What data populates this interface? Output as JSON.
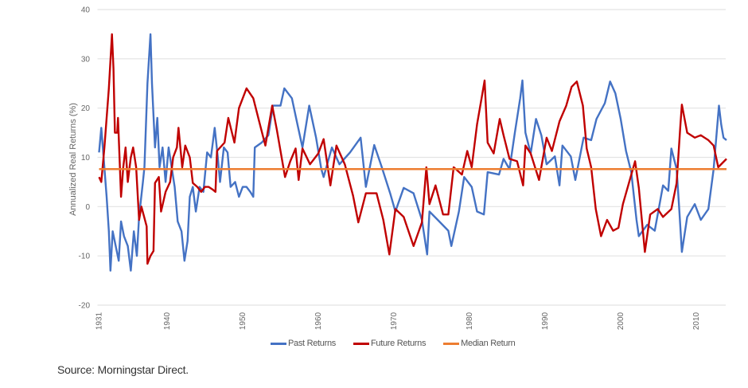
{
  "chart_data": {
    "type": "line",
    "title": "",
    "xlabel": "",
    "ylabel": "Annualized Real Returns (%)",
    "ylim": [
      -20,
      40
    ],
    "xlim": [
      1931,
      2014
    ],
    "yticks": [
      40,
      30,
      20,
      10,
      0,
      -10,
      -20
    ],
    "xticks": [
      "1931",
      "1940",
      "1950",
      "1960",
      "1970",
      "1980",
      "1990",
      "2000",
      "2010"
    ],
    "grid": true,
    "legend_position": "bottom",
    "series": [
      {
        "name": "Past Returns",
        "color": "#4472c4",
        "x": [
          1931.0,
          1931.3,
          1931.6,
          1932.0,
          1932.3,
          1932.5,
          1932.8,
          1933.2,
          1933.6,
          1933.9,
          1934.3,
          1934.8,
          1935.2,
          1935.6,
          1936.0,
          1936.3,
          1936.8,
          1937.0,
          1937.4,
          1937.8,
          1938.0,
          1938.4,
          1938.7,
          1939.0,
          1939.4,
          1939.8,
          1940.2,
          1940.6,
          1941.0,
          1941.4,
          1941.9,
          1942.3,
          1942.7,
          1943.0,
          1943.4,
          1943.8,
          1944.3,
          1944.8,
          1945.3,
          1945.8,
          1946.3,
          1946.7,
          1947.0,
          1947.5,
          1948.0,
          1948.4,
          1949.0,
          1949.5,
          1950.0,
          1950.5,
          1951.0,
          1951.4,
          1951.6,
          1952.5,
          1953.4,
          1954.0,
          1955.0,
          1955.5,
          1956.5,
          1957.2,
          1957.9,
          1958.8,
          1959.7,
          1960.4,
          1960.7,
          1961.8,
          1962.8,
          1964.2,
          1965.6,
          1966.3,
          1967.4,
          1968.4,
          1969.5,
          1970.2,
          1971.3,
          1972.6,
          1973.7,
          1974.4,
          1974.7,
          1975.8,
          1977.2,
          1977.6,
          1978.6,
          1979.3,
          1980.3,
          1981.0,
          1981.9,
          1982.4,
          1983.9,
          1984.5,
          1985.3,
          1986.0,
          1986.7,
          1987.0,
          1987.4,
          1988.1,
          1988.8,
          1989.5,
          1990.2,
          1991.3,
          1991.9,
          1992.3,
          1993.4,
          1994.0,
          1995.1,
          1996.1,
          1996.8,
          1997.9,
          1998.6,
          1999.3,
          2000.0,
          2000.7,
          2001.4,
          2002.1,
          2002.4,
          2003.5,
          2004.5,
          2005.6,
          2006.3,
          2006.7,
          2007.4,
          2007.7,
          2008.1,
          2008.8,
          2009.8,
          2010.6,
          2011.6,
          2012.3,
          2013.0,
          2013.3,
          2013.6,
          2014.0
        ],
        "y": [
          11,
          16,
          10,
          2,
          -5,
          -13,
          -5,
          -8,
          -11,
          -3,
          -6,
          -8,
          -13,
          -5,
          -10,
          -2,
          5,
          8,
          25,
          35,
          25,
          12,
          18,
          8,
          12,
          5,
          12,
          8,
          4,
          -3,
          -5,
          -11,
          -7,
          2,
          4,
          -1,
          4,
          3,
          11,
          10,
          16,
          10,
          5,
          12,
          11,
          4,
          5,
          2,
          4,
          4,
          3,
          2,
          12,
          13,
          14.5,
          20.5,
          20.5,
          24,
          22,
          17,
          12,
          20.5,
          14,
          7.6,
          6,
          12,
          8.6,
          11,
          14,
          4,
          12.5,
          8,
          2.7,
          -1,
          3.8,
          2.7,
          -2.7,
          -9.7,
          -1,
          -2.7,
          -4.9,
          -8,
          -1,
          6,
          4,
          -1,
          -1.6,
          7,
          6.5,
          9.7,
          7.6,
          15,
          22,
          25.6,
          15,
          10.8,
          17.8,
          14.5,
          8.6,
          10.2,
          4.3,
          12.4,
          10.2,
          5.4,
          14,
          13.5,
          17.8,
          21,
          25.4,
          23,
          17.8,
          11.3,
          7,
          -2.7,
          -6,
          -3.7,
          -4.9,
          4.3,
          3.2,
          11.8,
          7.6,
          0.5,
          -9.2,
          -2.1,
          0.5,
          -2.7,
          -0.5,
          7.6,
          20.5,
          16.7,
          14,
          13.5
        ]
      },
      {
        "name": "Future Returns",
        "color": "#c00000",
        "x": [
          1931.0,
          1931.3,
          1931.7,
          1932.0,
          1932.3,
          1932.7,
          1932.9,
          1933.1,
          1933.4,
          1933.5,
          1933.9,
          1934.2,
          1934.5,
          1934.8,
          1935.2,
          1935.5,
          1935.9,
          1936.3,
          1936.6,
          1937.3,
          1937.4,
          1937.8,
          1938.2,
          1938.4,
          1938.9,
          1939.2,
          1939.8,
          1940.4,
          1940.8,
          1941.3,
          1941.5,
          1942.0,
          1942.4,
          1943.0,
          1943.4,
          1944.0,
          1944.5,
          1945.0,
          1945.5,
          1946.0,
          1946.4,
          1946.6,
          1947.6,
          1948.1,
          1948.9,
          1949.5,
          1950.5,
          1951.4,
          1952.1,
          1953.0,
          1953.9,
          1954.5,
          1955.6,
          1956.3,
          1957.0,
          1957.4,
          1957.9,
          1958.9,
          1960.0,
          1960.7,
          1961.6,
          1962.4,
          1963.5,
          1964.6,
          1965.3,
          1966.3,
          1967.7,
          1968.6,
          1969.4,
          1970.2,
          1971.3,
          1972.6,
          1973.7,
          1974.3,
          1974.7,
          1975.5,
          1976.5,
          1977.2,
          1977.9,
          1979.0,
          1979.7,
          1980.3,
          1981.0,
          1981.6,
          1982.0,
          1982.4,
          1983.2,
          1984.0,
          1984.5,
          1985.3,
          1986.3,
          1987.1,
          1987.4,
          1988.1,
          1989.2,
          1990.2,
          1990.9,
          1991.9,
          1992.8,
          1993.5,
          1994.2,
          1995.0,
          1995.5,
          1996.1,
          1996.7,
          1997.4,
          1998.2,
          1999.0,
          1999.7,
          2000.3,
          2001.0,
          2001.9,
          2002.4,
          2003.2,
          2003.9,
          2004.9,
          2005.6,
          2006.7,
          2007.4,
          2007.9,
          2008.1,
          2008.8,
          2009.8,
          2010.6,
          2011.6,
          2012.3,
          2012.9,
          2014.0
        ],
        "y": [
          6,
          5,
          12,
          18,
          24,
          35,
          28,
          15,
          15,
          18,
          2,
          8,
          12,
          5,
          10,
          12,
          8,
          -2.7,
          0,
          -4,
          -11.6,
          -10,
          -9,
          4.8,
          6,
          -1,
          3,
          5,
          10,
          12,
          16,
          8,
          12.4,
          10,
          4.8,
          4,
          3,
          4,
          4,
          3.5,
          3,
          11.3,
          13,
          18,
          13,
          20,
          24,
          22,
          17.8,
          12.4,
          20.5,
          15.7,
          6,
          9.2,
          11.8,
          5.4,
          11.8,
          8.6,
          10.8,
          13.7,
          4.3,
          12.4,
          8.6,
          2.2,
          -3.2,
          2.7,
          2.7,
          -2.7,
          -9.7,
          -0.5,
          -2.1,
          -8,
          -3.2,
          8,
          0.5,
          4.3,
          -1.6,
          -1.6,
          8,
          6.5,
          11.3,
          8,
          16.7,
          22,
          25.6,
          13,
          10.8,
          17.8,
          14.5,
          9.7,
          9.2,
          4.3,
          12.4,
          10.8,
          5.4,
          14,
          11.3,
          17.3,
          20.5,
          24.3,
          25.4,
          20.5,
          11.8,
          8,
          -0.5,
          -6,
          -2.7,
          -4.9,
          -4.3,
          0.5,
          4.3,
          9.2,
          3.8,
          -9.2,
          -1.6,
          -0.5,
          -2.1,
          -0.5,
          4.8,
          16.7,
          20.7,
          15,
          14,
          14.5,
          13.5,
          12.4,
          8,
          9.7
        ]
      },
      {
        "name": "Median Return",
        "color": "#ed7d31",
        "x": [
          1931,
          2014
        ],
        "y": [
          7.6,
          7.6
        ]
      }
    ]
  },
  "source": "Source: Morningstar Direct."
}
